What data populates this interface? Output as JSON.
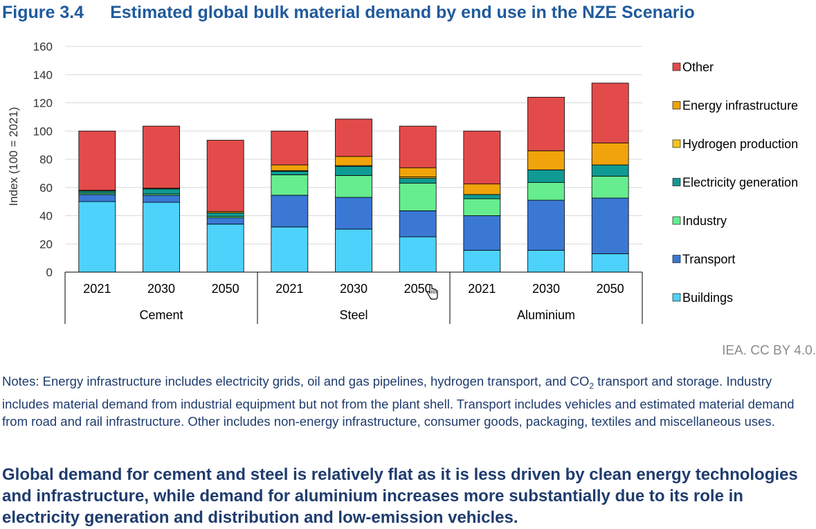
{
  "figure": {
    "number": "Figure 3.4",
    "title": "Estimated global bulk material demand by end use in the NZE Scenario"
  },
  "chart_data": {
    "type": "bar",
    "stacked": true,
    "ylabel": "Index (100 = 2021)",
    "ylim": [
      0,
      160
    ],
    "yticks": [
      0,
      20,
      40,
      60,
      80,
      100,
      120,
      140,
      160
    ],
    "grid": true,
    "legend_position": "right",
    "groups": [
      {
        "name": "Cement",
        "categories": [
          "2021",
          "2030",
          "2050"
        ]
      },
      {
        "name": "Steel",
        "categories": [
          "2021",
          "2030",
          "2050"
        ]
      },
      {
        "name": "Aluminium",
        "categories": [
          "2021",
          "2030",
          "2050"
        ]
      }
    ],
    "series": [
      {
        "name": "Buildings",
        "color": "#4dd2fc",
        "values": [
          50,
          49.5,
          34,
          32,
          30.5,
          25,
          15.5,
          15.5,
          13
        ]
      },
      {
        "name": "Transport",
        "color": "#3a78d4",
        "values": [
          5,
          5,
          4.5,
          22.5,
          22.5,
          18.5,
          24.5,
          35.5,
          39.5
        ]
      },
      {
        "name": "Industry",
        "color": "#66ed8f",
        "values": [
          1,
          1,
          1,
          14.5,
          15.5,
          19.5,
          12,
          12.5,
          15.5
        ]
      },
      {
        "name": "Electricity generation",
        "color": "#0f9a93",
        "values": [
          1.5,
          3.5,
          2.5,
          2.5,
          6.5,
          3.5,
          3,
          9,
          8
        ]
      },
      {
        "name": "Hydrogen production",
        "color": "#f5c518",
        "values": [
          0,
          0,
          0,
          0.5,
          0.5,
          1,
          0,
          0,
          0
        ]
      },
      {
        "name": "Energy infrastructure",
        "color": "#f0a30a",
        "values": [
          0.5,
          0.5,
          1,
          4,
          6.5,
          6.5,
          7.5,
          13.5,
          15.5
        ]
      },
      {
        "name": "Other",
        "color": "#e34b4b",
        "values": [
          42,
          44,
          50.5,
          24,
          26.5,
          29.5,
          37.5,
          38,
          42.5
        ]
      }
    ]
  },
  "credit": "IEA. CC BY 4.0.",
  "notes": {
    "part1": "Notes: Energy infrastructure includes electricity grids, oil and gas pipelines, hydrogen transport, and CO",
    "sub": "2",
    "part2": " transport and storage. Industry includes material demand from industrial equipment but not from the plant shell. Transport includes vehicles and estimated material demand from road and rail infrastructure. Other includes non-energy infrastructure, consumer goods, packaging, textiles and miscellaneous uses."
  },
  "summary": "Global demand for cement and steel is relatively flat as it is less driven by clean energy technologies and infrastructure, while demand for aluminium increases more substantially due to its role in electricity generation and distribution and low-emission vehicles."
}
